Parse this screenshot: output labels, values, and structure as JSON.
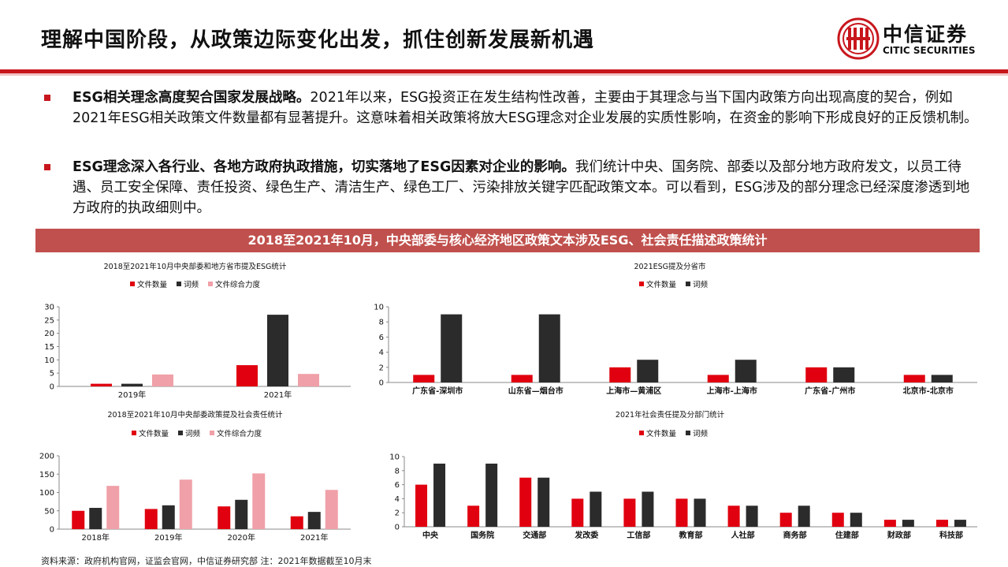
{
  "header": {
    "title": "理解中国阶段，从政策边际变化出发，抓住创新发展新机遇",
    "logo_cn": "中信证券",
    "logo_en": "CITIC SECURITIES"
  },
  "bullets": [
    {
      "bold": "ESG相关理念高度契合国家发展战略。",
      "text": "2021年以来，ESG投资正在发生结构性改善，主要由于其理念与当下国内政策方向出现高度的契合，例如2021年ESG相关政策文件数量都有显著提升。这意味着相关政策将放大ESG理念对企业发展的实质性影响，在资金的影响下形成良好的正反馈机制。"
    },
    {
      "bold": "ESG理念深入各行业、各地方政府执政措施，切实落地了ESG因素对企业的影响。",
      "text": "我们统计中央、国务院、部委以及部分地方政府发文，以员工待遇、员工安全保障、责任投资、绿色生产、清洁生产、绿色工厂、污染排放关键字匹配政策文本。可以看到，ESG涉及的部分理念已经深度渗透到地方政府的执政细则中。"
    }
  ],
  "banner": "2018至2021年10月，中央部委与核心经济地区政策文本涉及ESG、社会责任描述政策统计",
  "source": "资料来源：政府机构官网，证监会官网，中信证券研究部  注：2021年数据截至10月末",
  "colors": {
    "red": "#e0000f",
    "dark": "#2b2b2b",
    "pink": "#f0a0a8",
    "accent": "#c8161d"
  },
  "chart_data": [
    {
      "type": "bar",
      "title": "2018至2021年10月中央部委和地方省市提及ESG统计",
      "categories": [
        "2019年",
        "2021年"
      ],
      "series": [
        {
          "name": "文件数量",
          "values": [
            1,
            8
          ]
        },
        {
          "name": "词频",
          "values": [
            1,
            27
          ]
        },
        {
          "name": "文件综合力度",
          "values": [
            4.5,
            4.7
          ]
        }
      ],
      "ylim": [
        0,
        30
      ],
      "yticks": [
        0,
        5,
        10,
        15,
        20,
        25,
        30
      ]
    },
    {
      "type": "bar",
      "title": "2021ESG提及分省市",
      "categories": [
        "广东省-深圳市",
        "山东省—烟台市",
        "上海市—黄浦区",
        "上海市-上海市",
        "广东省-广州市",
        "北京市-北京市"
      ],
      "series": [
        {
          "name": "文件数量",
          "values": [
            1,
            1,
            2,
            1,
            2,
            1
          ]
        },
        {
          "name": "词频",
          "values": [
            9,
            9,
            3,
            3,
            2,
            1
          ]
        }
      ],
      "ylim": [
        0,
        10
      ],
      "yticks": [
        0,
        2,
        4,
        6,
        8,
        10
      ]
    },
    {
      "type": "bar",
      "title": "2018至2021年10月中央部委政策提及社会责任统计",
      "categories": [
        "2018年",
        "2019年",
        "2020年",
        "2021年"
      ],
      "series": [
        {
          "name": "文件数量",
          "values": [
            50,
            55,
            62,
            35
          ]
        },
        {
          "name": "词频",
          "values": [
            58,
            65,
            80,
            47
          ]
        },
        {
          "name": "文件综合力度",
          "values": [
            118,
            135,
            152,
            107
          ]
        }
      ],
      "ylim": [
        0,
        200
      ],
      "yticks": [
        0,
        50,
        100,
        150,
        200
      ]
    },
    {
      "type": "bar",
      "title": "2021年社会责任提及分部门统计",
      "categories": [
        "中央",
        "国务院",
        "交通部",
        "发改委",
        "工信部",
        "教育部",
        "人社部",
        "商务部",
        "住建部",
        "财政部",
        "科技部"
      ],
      "series": [
        {
          "name": "文件数量",
          "values": [
            6,
            3,
            7,
            4,
            4,
            4,
            3,
            2,
            2,
            1,
            1
          ]
        },
        {
          "name": "词频",
          "values": [
            9,
            9,
            7,
            5,
            5,
            4,
            3,
            3,
            2,
            1,
            1
          ]
        }
      ],
      "ylim": [
        0,
        10
      ],
      "yticks": [
        0,
        2,
        4,
        6,
        8,
        10
      ]
    }
  ]
}
